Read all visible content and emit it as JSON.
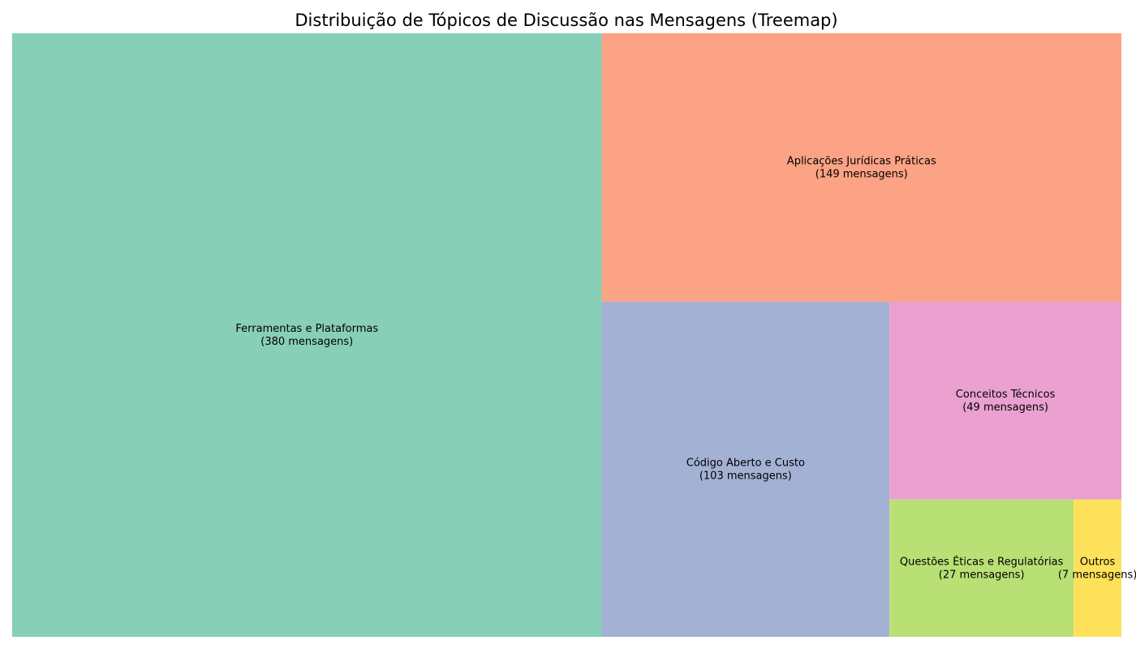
{
  "chart_data": {
    "type": "treemap",
    "title": "Distribuição de Tópicos de Discussão nas Mensagens (Treemap)",
    "unit_label": "mensagens",
    "grid": false,
    "axes": false,
    "items": [
      {
        "label": "Ferramentas e Plataformas",
        "value": 380,
        "value_text": "(380 mensagens)",
        "color": "#88cfb7"
      },
      {
        "label": "Aplicações Jurídicas Práticas",
        "value": 149,
        "value_text": "(149 mensagens)",
        "color": "#fba384"
      },
      {
        "label": "Código Aberto e Custo",
        "value": 103,
        "value_text": "(103 mensagens)",
        "color": "#a3b1d4"
      },
      {
        "label": "Conceitos Técnicos",
        "value": 49,
        "value_text": "(49 mensagens)",
        "color": "#eaa1cf"
      },
      {
        "label": "Questões Éticas e Regulatórias",
        "value": 27,
        "value_text": "(27 mensagens)",
        "color": "#b9e075"
      },
      {
        "label": "Outros",
        "value": 7,
        "value_text": "(7 mensagens)",
        "color": "#fee15a"
      }
    ]
  }
}
